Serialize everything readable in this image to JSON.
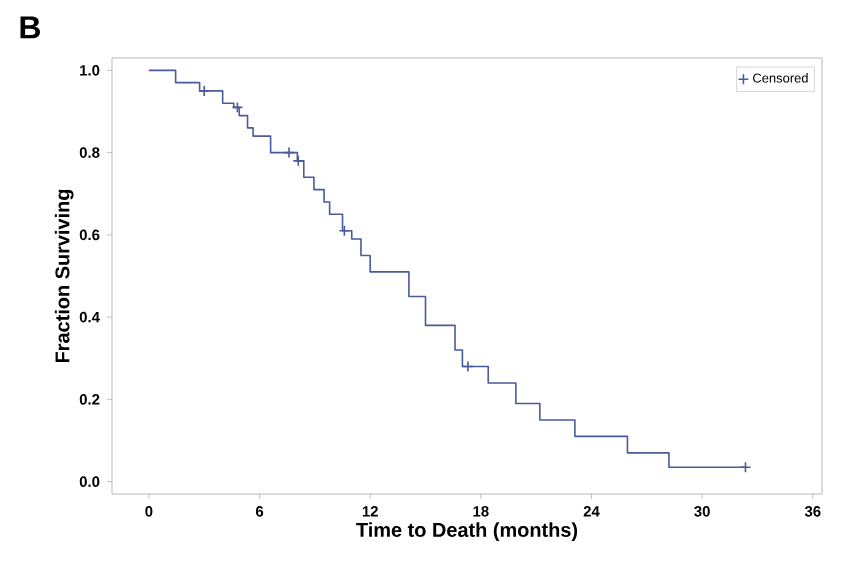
{
  "chart_data": {
    "type": "step",
    "title": "B",
    "xlabel": "Time to Death (months)",
    "ylabel": "Fraction Surviving",
    "xlim": [
      -2,
      36.5
    ],
    "ylim": [
      -0.03,
      1.03
    ],
    "xticks": [
      0,
      6,
      12,
      18,
      24,
      30,
      36
    ],
    "yticks": [
      {
        "value": 0,
        "label": "0.0"
      },
      {
        "value": 0.2,
        "label": "0.2"
      },
      {
        "value": 0.4,
        "label": "0.4"
      },
      {
        "value": 0.6,
        "label": "0.6"
      },
      {
        "value": 0.8,
        "label": "0.8"
      },
      {
        "value": 1,
        "label": "1.0"
      }
    ],
    "legend": "top right",
    "grid": false,
    "series": [
      {
        "color": "#4a5a9a",
        "marker": "none",
        "x": [
          0,
          1.45,
          2.75,
          4.0,
          4.6,
          4.9,
          5.35,
          5.65,
          6.6,
          8.05,
          8.4,
          8.95,
          9.5,
          9.8,
          10.5,
          11.0,
          11.5,
          12.0,
          14.1,
          15.0,
          16.6,
          17.0,
          18.4,
          19.9,
          21.2,
          23.1,
          25.95,
          28.2,
          32.35
        ],
        "values": [
          1.0,
          0.97,
          0.95,
          0.92,
          0.91,
          0.89,
          0.86,
          0.84,
          0.8,
          0.78,
          0.74,
          0.71,
          0.68,
          0.65,
          0.61,
          0.59,
          0.55,
          0.51,
          0.45,
          0.38,
          0.32,
          0.28,
          0.24,
          0.19,
          0.15,
          0.11,
          0.07,
          0.035,
          0.035
        ]
      },
      {
        "type": "scatter",
        "name": "Censored",
        "color": "#4a5a9a",
        "marker": "cross",
        "x": [
          3.0,
          4.8,
          7.6,
          8.1,
          10.6,
          17.3,
          32.35
        ],
        "values": [
          0.95,
          0.91,
          0.8,
          0.78,
          0.61,
          0.28,
          0.035
        ]
      }
    ]
  }
}
